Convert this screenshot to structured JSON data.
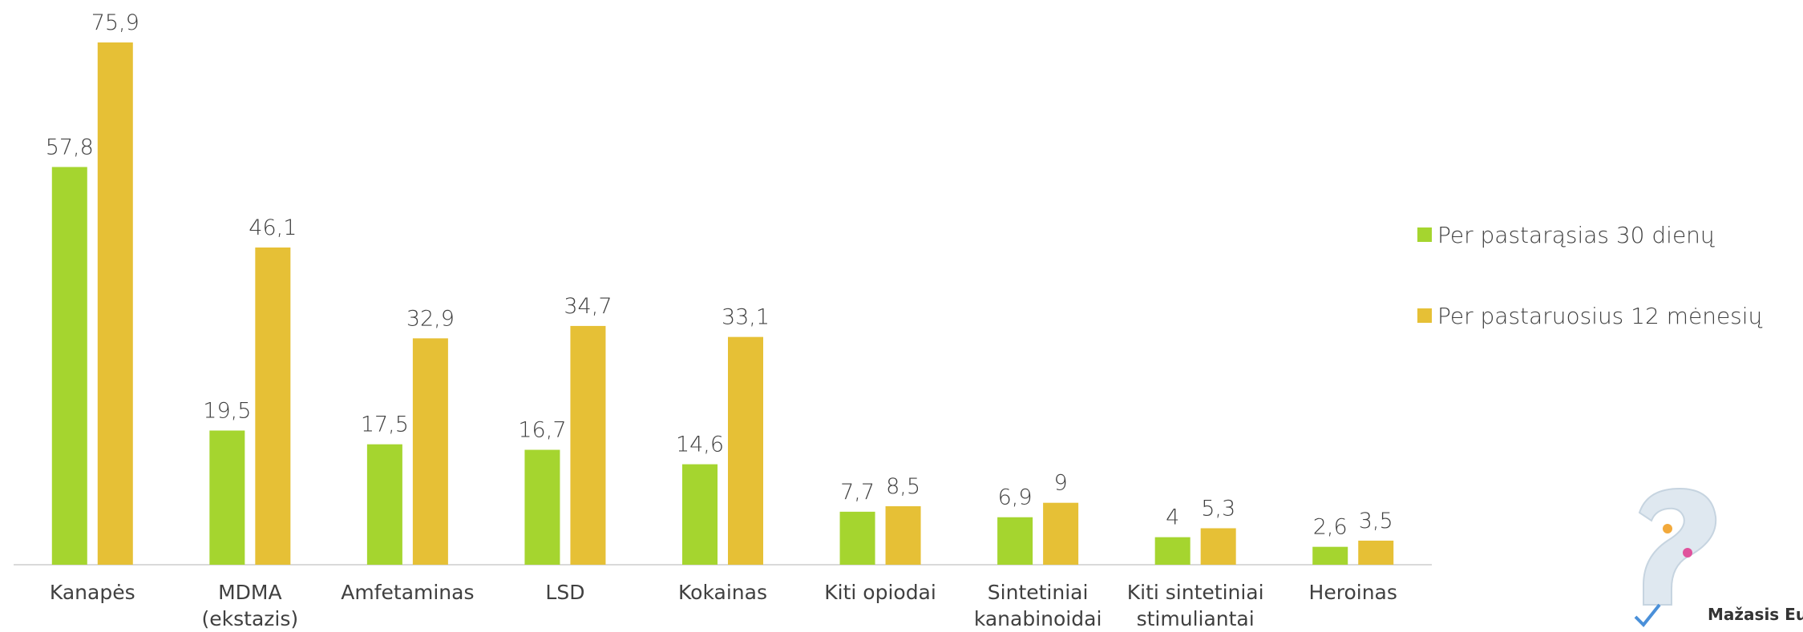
{
  "chart_data": {
    "type": "bar",
    "categories": [
      "Kanapės",
      "MDMA\n(ekstazis)",
      "Amfetaminas",
      "LSD",
      "Kokainas",
      "Kiti opiodai",
      "Sintetiniai\nkanabinoidai",
      "Kiti sintetiniai\nstimuliantai",
      "Heroinas"
    ],
    "series": [
      {
        "name": "Per pastarąsias 30 dienų",
        "color": "#a5d52f",
        "values": [
          57.8,
          19.5,
          17.5,
          16.7,
          14.6,
          7.7,
          6.9,
          4,
          2.6
        ],
        "value_labels": [
          "57,8",
          "19,5",
          "17,5",
          "16,7",
          "14,6",
          "7,7",
          "6,9",
          "4",
          "2,6"
        ]
      },
      {
        "name": "Per pastaruosius 12 mėnesių",
        "color": "#e6c036",
        "values": [
          75.9,
          46.1,
          32.9,
          34.7,
          33.1,
          8.5,
          9,
          5.3,
          3.5
        ],
        "value_labels": [
          "75,9",
          "46,1",
          "32,9",
          "34,7",
          "33,1",
          "8,5",
          "9",
          "5,3",
          "3,5"
        ]
      }
    ],
    "legend": "right"
  },
  "logo_text": "Mažasis Eur"
}
